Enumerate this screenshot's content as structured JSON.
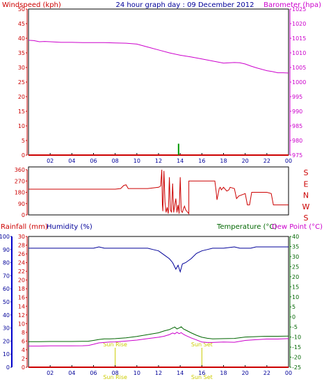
{
  "colors": {
    "axis_black": "#000000",
    "wind": "#cc0000",
    "barometer": "#cc00cc",
    "title": "#000099",
    "humidity": "#000099",
    "rain": "#cc0000",
    "temperature": "#006600",
    "dewpoint": "#cc00cc",
    "sun": "#cccc00",
    "gust_bar": "#009900"
  },
  "chart_data": [
    {
      "id": "wind-baro",
      "type": "line",
      "title": "24 hour graph day : 09 December 2012",
      "ylabel_left": "Windspeed (kph)",
      "ylabel_right": "Barometer (hpa)",
      "ylim_left": [
        0,
        50
      ],
      "yticks_left": [
        "0",
        "5",
        "10",
        "15",
        "20",
        "25",
        "30",
        "35",
        "40",
        "45",
        "50"
      ],
      "ylim_right": [
        975,
        1025
      ],
      "yticks_right": [
        "975",
        "980",
        "985",
        "990",
        "995",
        "1000",
        "1005",
        "1010",
        "1015",
        "1020",
        "1025"
      ],
      "xlim": [
        0,
        24
      ],
      "xticks": [
        "02",
        "04",
        "06",
        "08",
        "10",
        "12",
        "14",
        "16",
        "18",
        "20",
        "22",
        "00"
      ],
      "series": [
        {
          "name": "Barometer",
          "axis": "right",
          "x": [
            0,
            0.5,
            1,
            1.5,
            2,
            3,
            4,
            5,
            6,
            7,
            8,
            9,
            10,
            11,
            12,
            13,
            14,
            15,
            16,
            17,
            18,
            19,
            19.5,
            20,
            20.5,
            21,
            22,
            22.5,
            23,
            23.5,
            24
          ],
          "values": [
            1014.3,
            1014.2,
            1013.8,
            1013.9,
            1013.8,
            1013.6,
            1013.6,
            1013.5,
            1013.5,
            1013.5,
            1013.4,
            1013.3,
            1013.0,
            1012.0,
            1011.0,
            1010.0,
            1009.2,
            1008.6,
            1007.9,
            1007.2,
            1006.5,
            1006.7,
            1006.6,
            1006.2,
            1005.5,
            1004.9,
            1003.9,
            1003.6,
            1003.2,
            1003.2,
            1003.1
          ]
        },
        {
          "name": "Windspeed",
          "axis": "left",
          "x": [
            0,
            13.8,
            13.8,
            13.95,
            13.95,
            24
          ],
          "values": [
            0,
            0,
            0,
            0,
            0,
            0
          ]
        }
      ],
      "gusts": [
        {
          "x": 13.85,
          "value": 1.5
        }
      ]
    },
    {
      "id": "wind-direction",
      "type": "line",
      "ylim": [
        0,
        360
      ],
      "yticks": [
        "0",
        "90",
        "180",
        "270",
        "360"
      ],
      "compass_labels": [
        "S",
        "E",
        "N",
        "W",
        "S"
      ],
      "xlim": [
        0,
        24
      ],
      "series": [
        {
          "name": "Wind direction",
          "x": [
            0,
            8,
            8.5,
            8.8,
            9,
            9.2,
            10,
            11,
            12,
            12.2,
            12.3,
            12.35,
            12.4,
            12.5,
            12.6,
            12.7,
            12.8,
            12.9,
            13.0,
            13.1,
            13.2,
            13.3,
            13.4,
            13.5,
            13.6,
            13.7,
            13.8,
            13.9,
            14.0,
            14.1,
            14.2,
            14.3,
            14.4,
            14.5,
            14.7,
            14.8,
            14.8,
            17.2,
            17.3,
            17.4,
            17.6,
            17.7,
            17.8,
            18.0,
            18.3,
            18.5,
            18.6,
            19.0,
            19.2,
            19.4,
            20.0,
            20.2,
            20.4,
            20.6,
            22.0,
            22.4,
            22.6,
            23.5,
            24
          ],
          "values": [
            205,
            205,
            210,
            235,
            240,
            210,
            210,
            210,
            220,
            230,
            360,
            90,
            30,
            350,
            100,
            20,
            60,
            10,
            300,
            40,
            20,
            250,
            20,
            80,
            130,
            20,
            80,
            10,
            300,
            30,
            20,
            50,
            70,
            40,
            20,
            10,
            270,
            270,
            200,
            120,
            210,
            220,
            200,
            220,
            190,
            200,
            220,
            210,
            130,
            150,
            170,
            80,
            80,
            180,
            180,
            170,
            80,
            80,
            80
          ]
        }
      ]
    },
    {
      "id": "temp-hum-rain",
      "type": "line",
      "ylabel_rain": "Rainfall (mm)",
      "ylabel_humidity": "Humidity (%)",
      "ylabel_temperature": "Temperature (°C)",
      "ylabel_dewpoint": "Dew Point (°C)",
      "ylim_humidity": [
        0,
        100
      ],
      "yticks_humidity": [
        "0",
        "10",
        "20",
        "30",
        "40",
        "50",
        "60",
        "70",
        "80",
        "90",
        "100"
      ],
      "ylim_rain": [
        0,
        30
      ],
      "yticks_rain": [
        "0",
        "2",
        "4",
        "6",
        "8",
        "10",
        "12",
        "14",
        "16",
        "18",
        "20",
        "22",
        "24",
        "26",
        "28",
        "30"
      ],
      "ylim_temperature": [
        -25,
        40
      ],
      "yticks_temperature": [
        "-25",
        "-20",
        "-15",
        "-10",
        "-5",
        "0",
        "5",
        "10",
        "15",
        "20",
        "25",
        "30",
        "35",
        "40"
      ],
      "xlim": [
        0,
        24
      ],
      "xticks": [
        "02",
        "04",
        "06",
        "08",
        "10",
        "12",
        "14",
        "16",
        "18",
        "20",
        "22",
        "00"
      ],
      "sun_markers": [
        {
          "x": 8,
          "rise_label": "Sun Rise",
          "time_label": "Sun Rise"
        },
        {
          "x": 16,
          "rise_label": "Sun Set",
          "time_label": "Sun Set"
        }
      ],
      "series": [
        {
          "name": "Humidity",
          "x": [
            0,
            1,
            2,
            3,
            4,
            5,
            6,
            6.5,
            7,
            8,
            9,
            10,
            11,
            11.5,
            12,
            12.5,
            13,
            13.3,
            13.6,
            13.8,
            14.0,
            14.2,
            14.5,
            15,
            15.5,
            16,
            16.5,
            17,
            18,
            19,
            19.5,
            20,
            20.5,
            21,
            22,
            23,
            24
          ],
          "values": [
            91,
            91,
            91,
            91,
            91,
            91,
            91,
            92,
            91,
            91,
            91,
            91,
            91,
            90,
            89,
            86,
            83,
            80,
            75,
            78,
            73,
            79,
            80,
            83,
            87,
            89,
            90,
            91,
            91,
            92,
            91,
            91,
            91,
            92,
            92,
            92,
            92
          ]
        },
        {
          "name": "Temperature",
          "x": [
            0,
            1,
            2,
            3,
            4,
            5,
            5.5,
            6,
            6.5,
            7,
            7.5,
            8,
            9,
            10,
            11,
            12,
            12.5,
            13,
            13.3,
            13.5,
            13.7,
            13.9,
            14.1,
            14.3,
            14.5,
            15,
            15.5,
            16,
            16.5,
            17,
            18,
            19,
            20,
            21,
            22,
            23,
            24
          ],
          "values": [
            -12.3,
            -12.3,
            -12.2,
            -12.2,
            -12.2,
            -12.1,
            -12.1,
            -11.7,
            -11.2,
            -10.9,
            -10.9,
            -10.8,
            -10.4,
            -9.7,
            -8.8,
            -7.9,
            -7.0,
            -6.3,
            -5.5,
            -5.0,
            -6.0,
            -5.5,
            -4.9,
            -6.0,
            -6.5,
            -7.9,
            -9.1,
            -10.1,
            -10.6,
            -10.9,
            -10.8,
            -10.7,
            -10.0,
            -9.8,
            -9.6,
            -9.6,
            -9.5
          ]
        },
        {
          "name": "Dew Point",
          "x": [
            0,
            1,
            2,
            3,
            4,
            5,
            5.5,
            6,
            6.5,
            7,
            7.5,
            8,
            9,
            10,
            11,
            12,
            12.5,
            13,
            13.3,
            13.5,
            13.7,
            13.9,
            14.1,
            14.3,
            14.5,
            15,
            15.5,
            16,
            16.5,
            17,
            18,
            19,
            20,
            21,
            22,
            23,
            24
          ],
          "values": [
            -14.5,
            -14.5,
            -14.4,
            -14.4,
            -14.4,
            -14.3,
            -14.2,
            -13.6,
            -12.9,
            -12.7,
            -12.5,
            -12.4,
            -12.0,
            -11.5,
            -10.8,
            -10.1,
            -9.6,
            -8.8,
            -8.0,
            -8.4,
            -7.6,
            -8.3,
            -7.8,
            -8.6,
            -9.2,
            -10.4,
            -11.4,
            -12.5,
            -12.7,
            -12.7,
            -12.5,
            -12.6,
            -11.7,
            -11.3,
            -11.0,
            -11.0,
            -10.8
          ]
        },
        {
          "name": "Rainfall",
          "x": [
            0,
            24
          ],
          "values": [
            0,
            0
          ]
        }
      ]
    }
  ]
}
